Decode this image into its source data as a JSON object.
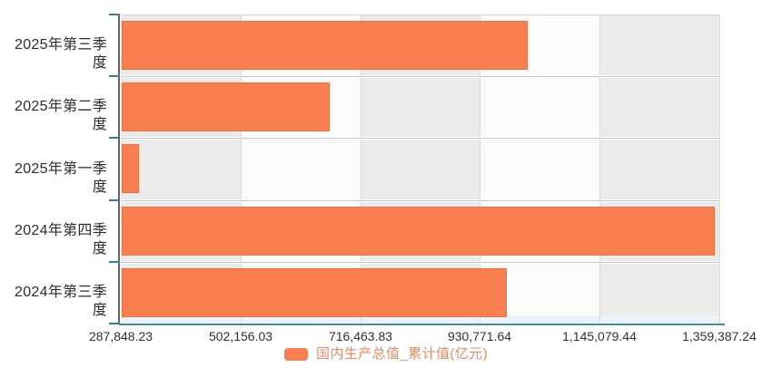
{
  "chart_data": {
    "type": "bar",
    "orientation": "horizontal",
    "title": "",
    "xlabel": "",
    "ylabel": "",
    "categories": [
      "2025年第三季度",
      "2025年第二季度",
      "2025年第一季度",
      "2024年第四季度",
      "2024年第三季度"
    ],
    "series_name": "国内生产总值_累计值(亿元)",
    "values": [
      1015036.8,
      660536.0,
      318758.2,
      1349084.0,
      976700.0
    ],
    "x_axis": {
      "min": 287848.23,
      "max": 1359387.24,
      "tick_labels": [
        "287,848.23",
        "502,156.03",
        "716,463.83",
        "930,771.64",
        "1,145,079.44",
        "1,359,387.24"
      ]
    },
    "legend": {
      "label": "国内生产总值_累计值(亿元)",
      "position": "bottom"
    },
    "grid": true
  },
  "colors": {
    "bar": "#f97e50",
    "legend_text": "#ef8a62",
    "band_dark": "#ebebeb",
    "band_light": "#fbfbfb",
    "axis_strip": "#e9f3f8",
    "x_axis_line": "#4f87a0",
    "y_axis_line": "#63676b",
    "y_axis_tick": "#3c7e96",
    "label_text": "#2d2d2d"
  }
}
